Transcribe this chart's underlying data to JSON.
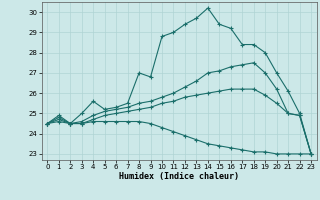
{
  "xlabel": "Humidex (Indice chaleur)",
  "xlim": [
    -0.5,
    23.5
  ],
  "ylim": [
    22.7,
    30.5
  ],
  "xticks": [
    0,
    1,
    2,
    3,
    4,
    5,
    6,
    7,
    8,
    9,
    10,
    11,
    12,
    13,
    14,
    15,
    16,
    17,
    18,
    19,
    20,
    21,
    22,
    23
  ],
  "yticks": [
    23,
    24,
    25,
    26,
    27,
    28,
    29,
    30
  ],
  "bg_color": "#cce8e8",
  "line_color": "#1a6e6a",
  "grid_color": "#b0d4d4",
  "series": [
    {
      "x": [
        0,
        1,
        2,
        3,
        4,
        5,
        6,
        7,
        8,
        9,
        10,
        11,
        12,
        13,
        14,
        15,
        16,
        17,
        18,
        19,
        20,
        21,
        22,
        23
      ],
      "y": [
        24.5,
        24.9,
        24.5,
        25.0,
        25.6,
        25.2,
        25.3,
        25.5,
        27.0,
        26.8,
        28.8,
        29.0,
        29.4,
        29.7,
        30.2,
        29.4,
        29.2,
        28.4,
        28.4,
        28.0,
        27.0,
        26.1,
        25.0,
        23.0
      ]
    },
    {
      "x": [
        0,
        1,
        2,
        3,
        4,
        5,
        6,
        7,
        8,
        9,
        10,
        11,
        12,
        13,
        14,
        15,
        16,
        17,
        18,
        19,
        20,
        21,
        22,
        23
      ],
      "y": [
        24.5,
        24.8,
        24.5,
        24.6,
        24.9,
        25.1,
        25.2,
        25.3,
        25.5,
        25.6,
        25.8,
        26.0,
        26.3,
        26.6,
        27.0,
        27.1,
        27.3,
        27.4,
        27.5,
        27.0,
        26.2,
        25.0,
        24.9,
        23.0
      ]
    },
    {
      "x": [
        0,
        1,
        2,
        3,
        4,
        5,
        6,
        7,
        8,
        9,
        10,
        11,
        12,
        13,
        14,
        15,
        16,
        17,
        18,
        19,
        20,
        21,
        22,
        23
      ],
      "y": [
        24.5,
        24.7,
        24.5,
        24.5,
        24.7,
        24.9,
        25.0,
        25.1,
        25.2,
        25.3,
        25.5,
        25.6,
        25.8,
        25.9,
        26.0,
        26.1,
        26.2,
        26.2,
        26.2,
        25.9,
        25.5,
        25.0,
        24.9,
        23.0
      ]
    },
    {
      "x": [
        0,
        1,
        2,
        3,
        4,
        5,
        6,
        7,
        8,
        9,
        10,
        11,
        12,
        13,
        14,
        15,
        16,
        17,
        18,
        19,
        20,
        21,
        22,
        23
      ],
      "y": [
        24.5,
        24.6,
        24.5,
        24.5,
        24.6,
        24.6,
        24.6,
        24.6,
        24.6,
        24.5,
        24.3,
        24.1,
        23.9,
        23.7,
        23.5,
        23.4,
        23.3,
        23.2,
        23.1,
        23.1,
        23.0,
        23.0,
        23.0,
        23.0
      ]
    }
  ]
}
